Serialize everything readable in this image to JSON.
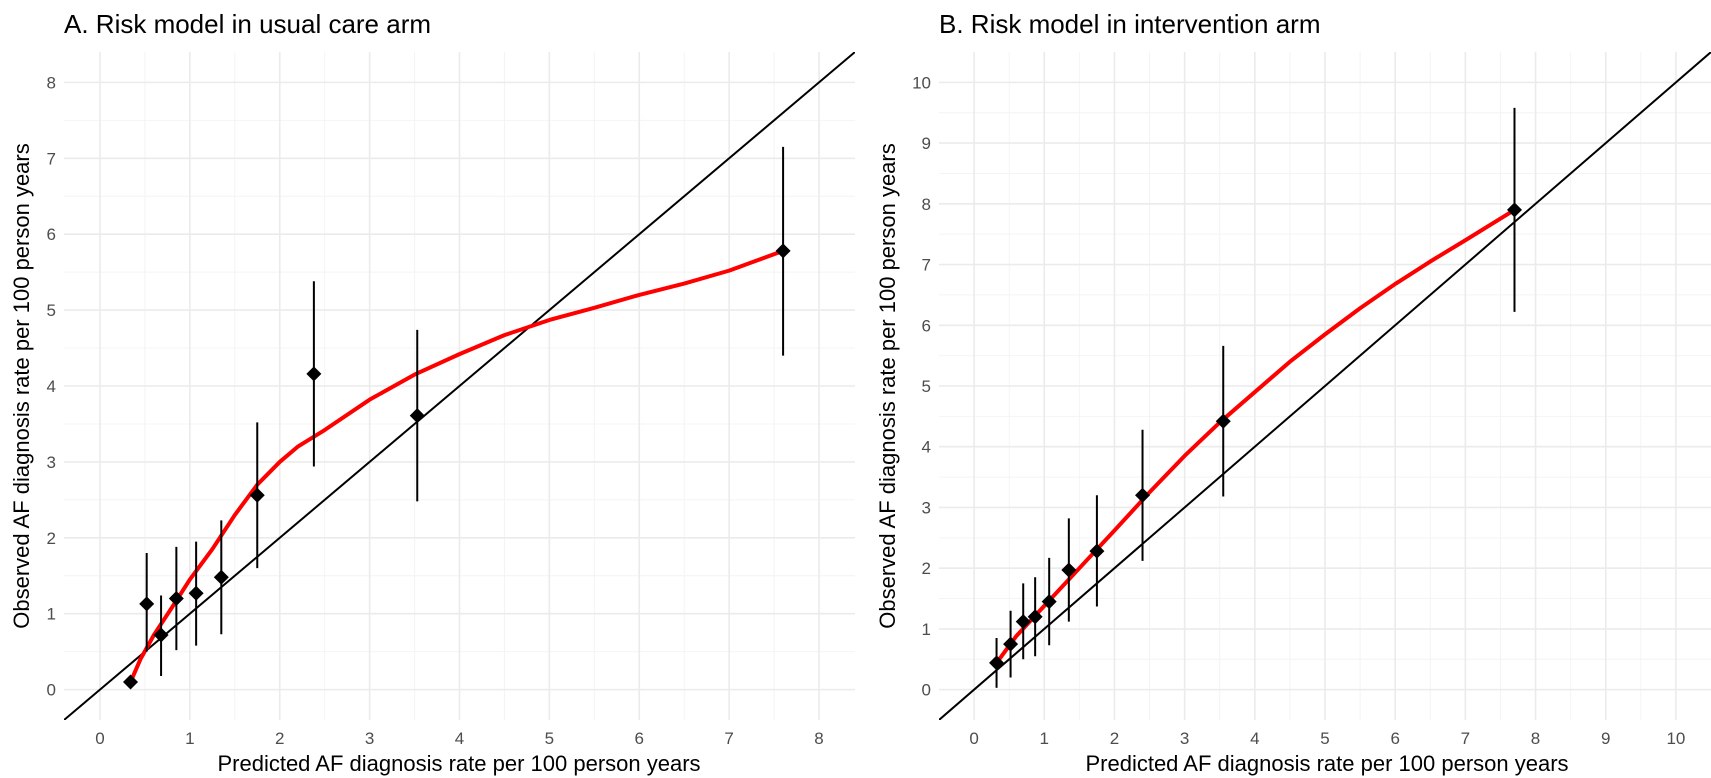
{
  "chart_data": [
    {
      "type": "scatter",
      "title": "A. Risk model in usual care arm",
      "xlabel": "Predicted AF diagnosis rate per 100 person years",
      "ylabel": "Observed AF diagnosis rate per 100 person years",
      "xlim": [
        -0.4,
        8.4
      ],
      "ylim": [
        -0.4,
        8.4
      ],
      "x_ticks": [
        0,
        1,
        2,
        3,
        4,
        5,
        6,
        7,
        8
      ],
      "y_ticks": [
        0,
        1,
        2,
        3,
        4,
        5,
        6,
        7,
        8
      ],
      "x_tick_labels": [
        "0",
        "1",
        "2",
        "3",
        "4",
        "5",
        "6",
        "7",
        "8"
      ],
      "y_tick_labels": [
        "0",
        "1",
        "2",
        "3",
        "4",
        "5",
        "6",
        "7",
        "8"
      ],
      "grid": true,
      "reference_line": "y = x",
      "points": [
        {
          "x": 0.34,
          "y": 0.1,
          "lower": 0.1,
          "upper": 0.1
        },
        {
          "x": 0.52,
          "y": 1.13,
          "lower": 0.5,
          "upper": 1.8
        },
        {
          "x": 0.68,
          "y": 0.72,
          "lower": 0.18,
          "upper": 1.24
        },
        {
          "x": 0.85,
          "y": 1.2,
          "lower": 0.52,
          "upper": 1.88
        },
        {
          "x": 1.07,
          "y": 1.27,
          "lower": 0.58,
          "upper": 1.95
        },
        {
          "x": 1.35,
          "y": 1.48,
          "lower": 0.73,
          "upper": 2.23
        },
        {
          "x": 1.75,
          "y": 2.56,
          "lower": 1.6,
          "upper": 3.52
        },
        {
          "x": 2.38,
          "y": 4.16,
          "lower": 2.94,
          "upper": 5.38
        },
        {
          "x": 3.53,
          "y": 3.61,
          "lower": 2.48,
          "upper": 4.74
        },
        {
          "x": 7.6,
          "y": 5.78,
          "lower": 4.4,
          "upper": 7.15
        }
      ],
      "smooth_curve": [
        [
          0.34,
          0.1
        ],
        [
          0.45,
          0.4
        ],
        [
          0.6,
          0.72
        ],
        [
          0.8,
          1.08
        ],
        [
          1.0,
          1.45
        ],
        [
          1.25,
          1.85
        ],
        [
          1.5,
          2.3
        ],
        [
          1.75,
          2.7
        ],
        [
          2.0,
          3.0
        ],
        [
          2.2,
          3.2
        ],
        [
          2.5,
          3.42
        ],
        [
          3.0,
          3.82
        ],
        [
          3.5,
          4.15
        ],
        [
          4.0,
          4.42
        ],
        [
          4.5,
          4.67
        ],
        [
          5.0,
          4.87
        ],
        [
          5.5,
          5.03
        ],
        [
          6.0,
          5.2
        ],
        [
          6.5,
          5.35
        ],
        [
          7.0,
          5.52
        ],
        [
          7.6,
          5.78
        ]
      ],
      "colors": {
        "points": "#000000",
        "smooth": "#ff0000",
        "reference": "#000000"
      }
    },
    {
      "type": "scatter",
      "title": "B. Risk model in intervention arm",
      "xlabel": "Predicted AF diagnosis rate per 100 person years",
      "ylabel": "Observed AF diagnosis rate per 100 person years",
      "xlim": [
        -0.5,
        10.5
      ],
      "ylim": [
        -0.5,
        10.5
      ],
      "x_ticks": [
        0,
        1,
        2,
        3,
        4,
        5,
        6,
        7,
        8,
        9,
        10
      ],
      "y_ticks": [
        0,
        1,
        2,
        3,
        4,
        5,
        6,
        7,
        8,
        9,
        10
      ],
      "x_tick_labels": [
        "0",
        "1",
        "2",
        "3",
        "4",
        "5",
        "6",
        "7",
        "8",
        "9",
        "10"
      ],
      "y_tick_labels": [
        "0",
        "1",
        "2",
        "3",
        "4",
        "5",
        "6",
        "7",
        "8",
        "9",
        "10"
      ],
      "grid": true,
      "reference_line": "y = x",
      "points": [
        {
          "x": 0.32,
          "y": 0.44,
          "lower": 0.03,
          "upper": 0.85
        },
        {
          "x": 0.52,
          "y": 0.75,
          "lower": 0.2,
          "upper": 1.3
        },
        {
          "x": 0.7,
          "y": 1.12,
          "lower": 0.5,
          "upper": 1.75
        },
        {
          "x": 0.87,
          "y": 1.2,
          "lower": 0.55,
          "upper": 1.85
        },
        {
          "x": 1.07,
          "y": 1.45,
          "lower": 0.73,
          "upper": 2.17
        },
        {
          "x": 1.35,
          "y": 1.97,
          "lower": 1.12,
          "upper": 2.82
        },
        {
          "x": 1.75,
          "y": 2.28,
          "lower": 1.37,
          "upper": 3.2
        },
        {
          "x": 2.4,
          "y": 3.2,
          "lower": 2.12,
          "upper": 4.28
        },
        {
          "x": 3.55,
          "y": 4.42,
          "lower": 3.18,
          "upper": 5.66
        },
        {
          "x": 7.7,
          "y": 7.9,
          "lower": 6.22,
          "upper": 9.58
        }
      ],
      "smooth_curve": [
        [
          0.32,
          0.44
        ],
        [
          0.6,
          0.88
        ],
        [
          1.0,
          1.38
        ],
        [
          1.5,
          2.0
        ],
        [
          2.0,
          2.62
        ],
        [
          2.5,
          3.25
        ],
        [
          3.0,
          3.85
        ],
        [
          3.5,
          4.4
        ],
        [
          4.0,
          4.9
        ],
        [
          4.5,
          5.4
        ],
        [
          5.0,
          5.85
        ],
        [
          5.5,
          6.28
        ],
        [
          6.0,
          6.68
        ],
        [
          6.5,
          7.05
        ],
        [
          7.0,
          7.4
        ],
        [
          7.7,
          7.9
        ]
      ],
      "colors": {
        "points": "#000000",
        "smooth": "#ff0000",
        "reference": "#000000"
      }
    }
  ]
}
